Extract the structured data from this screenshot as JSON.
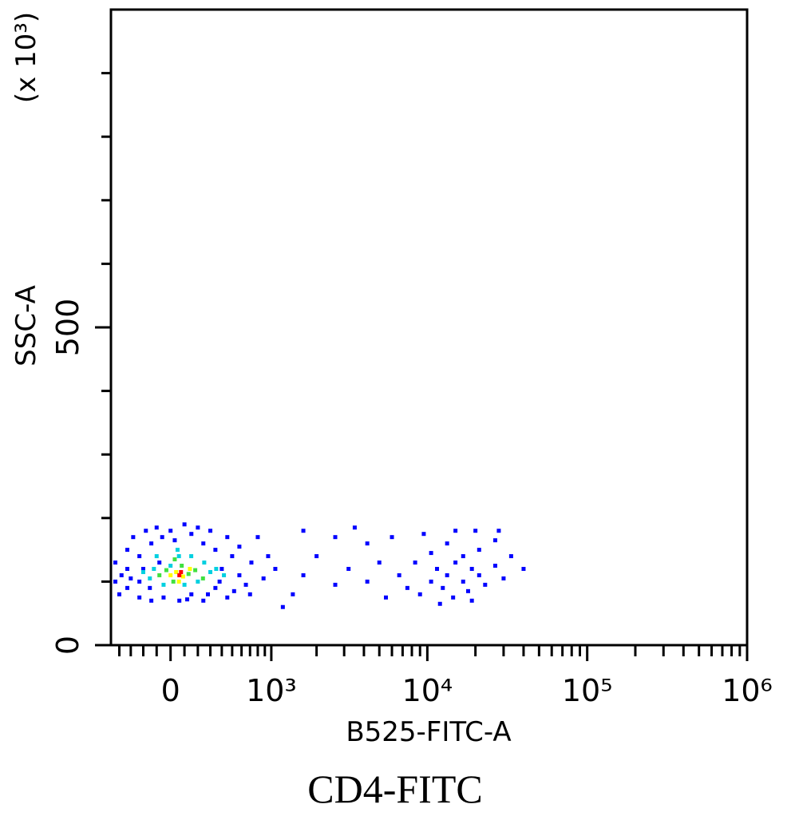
{
  "chart_data": {
    "type": "scatter",
    "title": "CD4-FITC",
    "x_label": "B525-FITC-A",
    "y_label": "SSC-A",
    "y_multiplier": "(x 10³)",
    "xscale": "biexponential",
    "xlim": [
      -480,
      1000000
    ],
    "ylim": [
      0,
      1000
    ],
    "xticks": [
      0,
      {
        "value": 1000,
        "label": "10³"
      },
      {
        "value": 10000,
        "label": "10⁴"
      },
      {
        "value": 100000,
        "label": "10⁵"
      },
      {
        "value": 1000000,
        "label": "10⁶"
      }
    ],
    "xminor_ticks": [
      -400,
      -300,
      -200,
      -100,
      100,
      200,
      300,
      400,
      500,
      600,
      700,
      800,
      900,
      2000,
      3000,
      4000,
      5000,
      6000,
      7000,
      8000,
      9000,
      20000,
      30000,
      40000,
      50000,
      60000,
      70000,
      80000,
      90000,
      200000,
      300000,
      400000,
      500000,
      600000,
      700000,
      800000,
      900000
    ],
    "yticks": [
      0,
      500
    ],
    "yminor_ticks": [
      100,
      200,
      300,
      400,
      600,
      700,
      800,
      900
    ],
    "series": [
      {
        "color": "#0000ff",
        "x": [
          -437,
          -437,
          -400,
          -329,
          -329,
          -329,
          -280,
          -230,
          -230,
          -230,
          -180,
          -139,
          -139,
          -100,
          -80,
          -50,
          0,
          30,
          63,
          100,
          151,
          151,
          200,
          243,
          243,
          300,
          343,
          343,
          400,
          452,
          452,
          500,
          576,
          576,
          650,
          717,
          800,
          881,
          950,
          1066,
          -380,
          -300,
          -200,
          -150,
          -60,
          120,
          280,
          380,
          520,
          700,
          6666,
          7500,
          8390,
          9000,
          10560,
          10560,
          11500,
          12500,
          13300,
          13300,
          14500,
          15000,
          16760,
          16760,
          18000,
          19000,
          21100,
          21100,
          23000,
          26600,
          26600,
          30000,
          33450,
          40000,
          9500,
          15000,
          20000,
          12000,
          19000,
          28000,
          1642,
          1642,
          1400,
          2000,
          2634,
          2634,
          3200,
          4200,
          4200,
          5000,
          5500,
          6000,
          1200,
          3500
        ],
        "y": [
          100,
          130,
          80,
          150,
          90,
          120,
          170,
          100,
          140,
          75,
          180,
          160,
          70,
          185,
          130,
          75,
          180,
          165,
          70,
          190,
          175,
          80,
          185,
          160,
          70,
          180,
          150,
          90,
          120,
          170,
          75,
          140,
          110,
          155,
          95,
          130,
          170,
          105,
          140,
          120,
          110,
          105,
          120,
          90,
          170,
          72,
          80,
          100,
          85,
          80,
          110,
          90,
          130,
          80,
          100,
          145,
          120,
          90,
          110,
          160,
          75,
          130,
          100,
          140,
          85,
          120,
          110,
          150,
          95,
          125,
          165,
          105,
          140,
          120,
          175,
          180,
          180,
          65,
          70,
          180,
          180,
          110,
          80,
          140,
          170,
          95,
          120,
          160,
          100,
          130,
          75,
          170,
          60,
          185
        ]
      },
      {
        "color": "#00d0e0",
        "x": [
          -200,
          -150,
          -100,
          -50,
          0,
          50,
          100,
          150,
          200,
          250,
          300,
          350,
          420,
          -120,
          60
        ],
        "y": [
          115,
          105,
          140,
          95,
          125,
          150,
          95,
          140,
          100,
          130,
          115,
          120,
          110,
          120,
          140
        ]
      },
      {
        "color": "#40e040",
        "x": [
          -80,
          -30,
          20,
          80,
          130,
          180,
          240,
          30
        ],
        "y": [
          110,
          118,
          100,
          125,
          112,
          118,
          105,
          135
        ]
      },
      {
        "color": "#ffff00",
        "x": [
          0,
          40,
          90,
          140,
          60
        ],
        "y": [
          110,
          115,
          108,
          120,
          100
        ]
      },
      {
        "color": "#ff0000",
        "x": [
          63,
          75
        ],
        "y": [
          110,
          115
        ]
      }
    ]
  }
}
